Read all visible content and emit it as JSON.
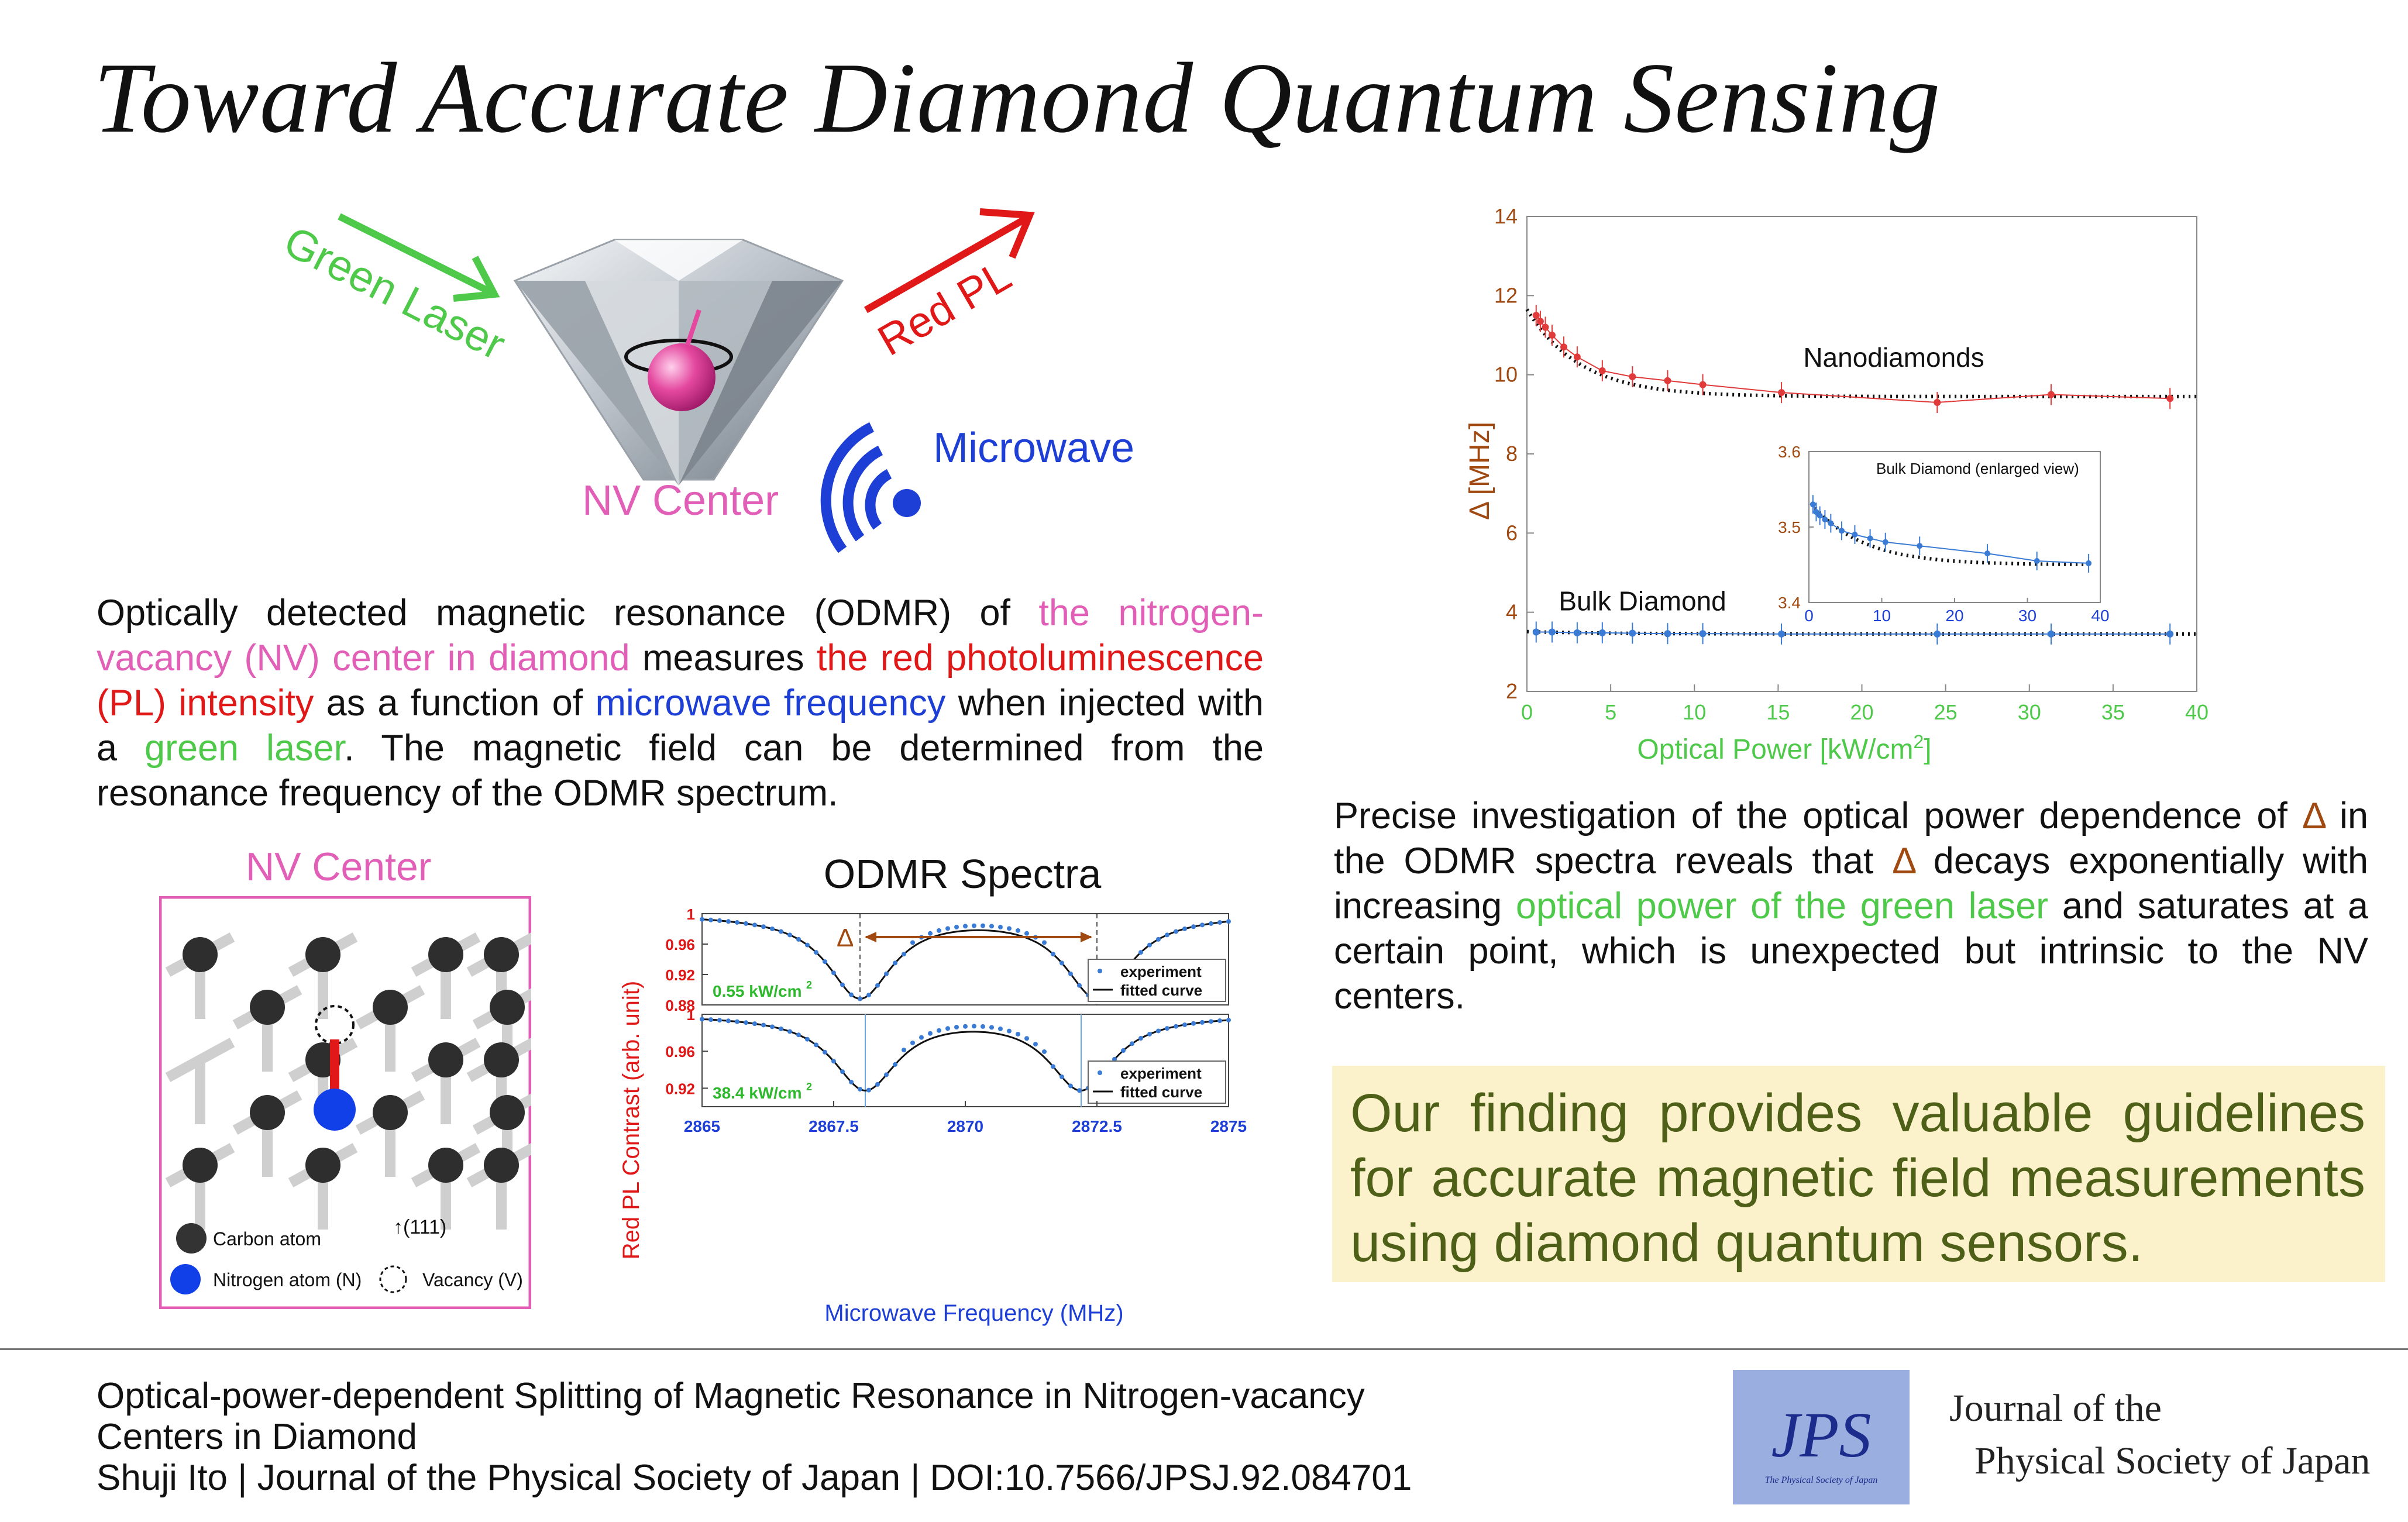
{
  "title": "Toward Accurate Diamond Quantum Sensing",
  "hero": {
    "green_laser": "Green Laser",
    "red_pl": "Red PL",
    "microwave": "Microwave",
    "nv_center": "NV Center"
  },
  "intro": {
    "s1": "Optically detected magnetic resonance (ODMR) of ",
    "s2": "the nitrogen-vacancy (NV) center in diamond",
    "s3": " measures ",
    "s4": "the red photoluminescence (PL) intensity",
    "s5": " as a function of ",
    "s6": "microwave frequency",
    "s7": " when injected with a ",
    "s8": "green laser",
    "s9": ". The magnetic field can be determined from the resonance frequency of the ODMR spectrum."
  },
  "nv_diagram": {
    "title": "NV Center",
    "carbon_label": "Carbon atom",
    "nitrogen_label": "Nitrogen atom (N)",
    "vacancy_label": "Vacancy (V)",
    "direction_label": "↑(111)"
  },
  "result_text": {
    "s1": "Precise investigation of the optical power dependence of ",
    "s2": "Δ",
    "s3": " in the ODMR spectra reveals that ",
    "s4": "Δ",
    "s5": " decays exponentially with increasing ",
    "s6": "optical power of the green laser",
    "s7": " and saturates at a certain point, which is unexpected but intrinsic to the NV centers."
  },
  "finding": "Our finding provides valuable guidelines for accurate magnetic field measurements using diamond quantum sensors.",
  "footer": {
    "paper_title_line1": "Optical-power-dependent Splitting of Magnetic Resonance in Nitrogen-vacancy",
    "paper_title_line2": "Centers in Diamond",
    "citation": "Shuji Ito | Journal of the Physical Society of Japan | DOI:10.7566/JPSJ.92.084701",
    "logo_text": "JPS",
    "logo_subtext": "The Physical Society of Japan",
    "journal_line1": "Journal of the",
    "journal_line2": "Physical Society of Japan"
  },
  "colors": {
    "pink": "#e15fb6",
    "red": "#e01818",
    "blue": "#1d3fd6",
    "green": "#4fc94a",
    "brown": "#a04a12",
    "finding_bg": "#fbf2cc",
    "finding_text": "#4e5f18"
  },
  "chart_data": [
    {
      "type": "line",
      "title": "ODMR Spectra",
      "xlabel": "Microwave Frequency (MHz)",
      "ylabel": "Red PL Contrast (arb. unit)",
      "xlim": [
        2865,
        2875
      ],
      "x_ticks": [
        "2865",
        "2867.5",
        "2870",
        "2872.5",
        "2875"
      ],
      "delta_label": "Δ",
      "legend": [
        "experiment",
        "fitted curve"
      ],
      "panels": [
        {
          "power_label": "0.55 kW/cm",
          "power_exp": "2",
          "ylim": [
            0.88,
            1.0
          ],
          "y_ticks": [
            "1",
            "0.96",
            "0.92",
            "0.88"
          ],
          "dip_centers": [
            2868.0,
            2872.5
          ],
          "min_value": 0.891,
          "center_peak": 0.965
        },
        {
          "power_label": "38.4 kW/cm",
          "power_exp": "2",
          "ylim": [
            0.9,
            1.0
          ],
          "y_ticks": [
            "1",
            "0.96",
            "0.92"
          ],
          "dip_centers": [
            2868.1,
            2872.2
          ],
          "min_value": 0.92,
          "center_peak": 0.975
        }
      ]
    },
    {
      "type": "line",
      "xlabel": "Optical Power [kW/cm",
      "xlabel_exp": "2",
      "xlabel_end": "]",
      "ylabel": "Δ [MHz]",
      "xlim": [
        0,
        40
      ],
      "ylim": [
        2,
        14
      ],
      "x_ticks": [
        "0",
        "5",
        "10",
        "15",
        "20",
        "25",
        "30",
        "35",
        "40"
      ],
      "y_ticks": [
        "2",
        "4",
        "6",
        "8",
        "10",
        "12",
        "14"
      ],
      "series": [
        {
          "name": "Nanodiamonds",
          "x": [
            0.55,
            0.8,
            1.1,
            1.5,
            2.2,
            3.0,
            4.5,
            6.3,
            8.4,
            10.5,
            15.2,
            24.5,
            31.3,
            38.4
          ],
          "values": [
            11.5,
            11.35,
            11.2,
            11.0,
            10.7,
            10.45,
            10.1,
            9.95,
            9.85,
            9.75,
            9.55,
            9.3,
            9.5,
            9.4
          ]
        },
        {
          "name": "Bulk Diamond",
          "x": [
            0.55,
            1.5,
            3.0,
            4.5,
            6.3,
            8.4,
            10.5,
            15.2,
            24.5,
            31.3,
            38.4
          ],
          "values": [
            3.5,
            3.5,
            3.48,
            3.48,
            3.47,
            3.46,
            3.46,
            3.45,
            3.45,
            3.45,
            3.45
          ]
        }
      ],
      "inset": {
        "title": "Bulk Diamond (enlarged view)",
        "xlim": [
          0,
          40
        ],
        "ylim": [
          3.4,
          3.6
        ],
        "x_ticks": [
          "0",
          "10",
          "20",
          "30",
          "40"
        ],
        "y_ticks": [
          "3.6",
          "3.5",
          "3.4"
        ],
        "x": [
          0.55,
          1.0,
          1.5,
          2.2,
          3.0,
          4.5,
          6.3,
          8.4,
          10.5,
          15.2,
          24.5,
          31.3,
          38.4
        ],
        "values": [
          3.53,
          3.52,
          3.515,
          3.51,
          3.505,
          3.495,
          3.49,
          3.485,
          3.48,
          3.475,
          3.465,
          3.455,
          3.452
        ]
      }
    }
  ]
}
